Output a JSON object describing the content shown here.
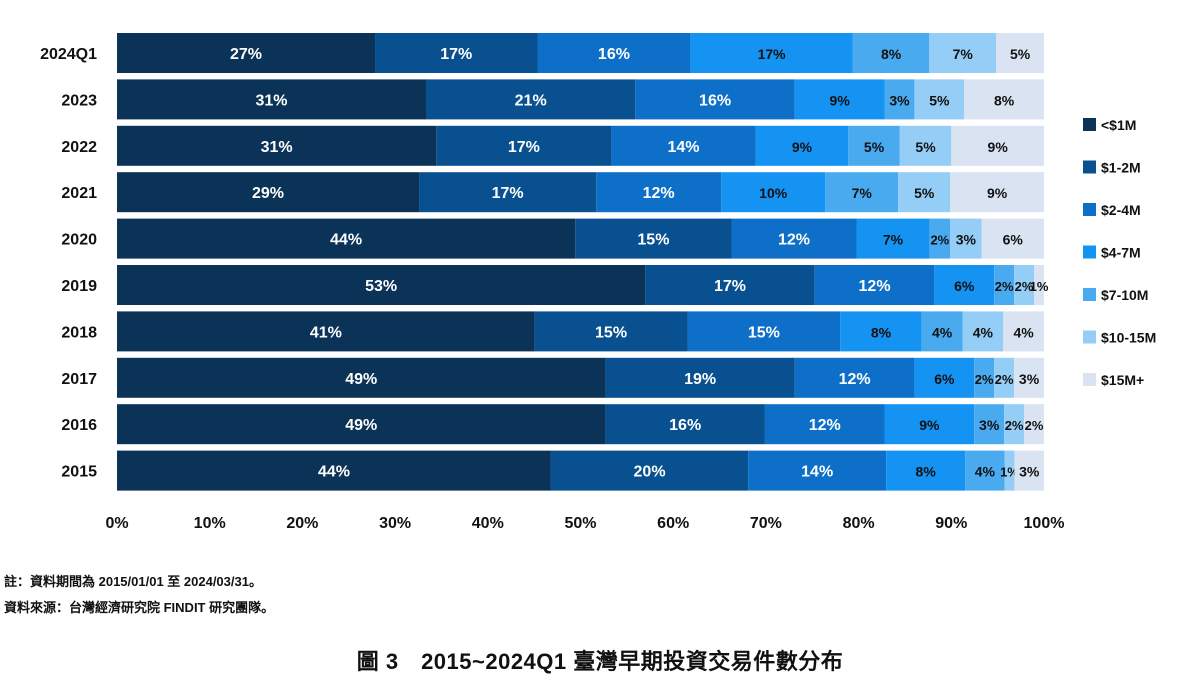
{
  "chart_data": {
    "type": "bar",
    "orientation": "horizontal",
    "stacked": true,
    "categories": [
      "2024Q1",
      "2023",
      "2022",
      "2021",
      "2020",
      "2019",
      "2018",
      "2017",
      "2016",
      "2015"
    ],
    "series": [
      {
        "name": "<$1M",
        "color": "#0b3358",
        "values": [
          27,
          31,
          31,
          29,
          44,
          53,
          41,
          49,
          49,
          44
        ],
        "labels": [
          "27%",
          "31%",
          "31%",
          "29%",
          "44%",
          "53%",
          "41%",
          "49%",
          "49%",
          "44%"
        ]
      },
      {
        "name": "$1-2M",
        "color": "#08508f",
        "values": [
          17,
          21,
          17,
          17,
          15,
          17,
          15,
          19,
          16,
          20
        ],
        "labels": [
          "17%",
          "21%",
          "17%",
          "17%",
          "15%",
          "17%",
          "15%",
          "19%",
          "16%",
          "20%"
        ]
      },
      {
        "name": "$2-4M",
        "color": "#0d6fc7",
        "values": [
          16,
          16,
          14,
          12,
          12,
          12,
          15,
          12,
          12,
          14
        ],
        "labels": [
          "16%",
          "16%",
          "14%",
          "12%",
          "12%",
          "12%",
          "15%",
          "12%",
          "12%",
          "14%"
        ]
      },
      {
        "name": "$4-7M",
        "color": "#1493f2",
        "values": [
          17,
          9,
          9,
          10,
          7,
          6,
          8,
          6,
          9,
          8
        ],
        "labels": [
          "17%",
          "9%",
          "9%",
          "10%",
          "7%",
          "6%",
          "8%",
          "6%",
          "9%",
          "8%"
        ]
      },
      {
        "name": "$7-10M",
        "color": "#4aaaf0",
        "values": [
          8,
          3,
          5,
          7,
          2,
          2,
          4,
          2,
          3,
          4
        ],
        "labels": [
          "8%",
          "3%",
          "5%",
          "7%",
          "2%",
          "2%",
          "4%",
          "2%",
          "3%",
          "4%"
        ]
      },
      {
        "name": "$10-15M",
        "color": "#94cdf5",
        "values": [
          7,
          5,
          5,
          5,
          3,
          2,
          4,
          2,
          2,
          1
        ],
        "labels": [
          "7%",
          "5%",
          "5%",
          "5%",
          "3%",
          "2%",
          "4%",
          "2%",
          "2%",
          "1%"
        ]
      },
      {
        "name": "$15M+",
        "color": "#d9e3f1",
        "values": [
          5,
          8,
          9,
          9,
          6,
          1,
          4,
          3,
          2,
          3
        ],
        "labels": [
          "5%",
          "8%",
          "9%",
          "9%",
          "6%",
          "1%",
          "4%",
          "3%",
          "2%",
          "3%"
        ]
      }
    ],
    "xlim": [
      0,
      100
    ],
    "xticks": [
      "0%",
      "10%",
      "20%",
      "30%",
      "40%",
      "50%",
      "60%",
      "70%",
      "80%",
      "90%",
      "100%"
    ],
    "legend_position": "right",
    "grid": false
  },
  "notes": {
    "period": "註：資料期間為 2015/01/01 至 2024/03/31。",
    "source": "資料來源：台灣經濟研究院 FINDIT 研究團隊。"
  },
  "caption": "圖 3　2015~2024Q1 臺灣早期投資交易件數分布"
}
